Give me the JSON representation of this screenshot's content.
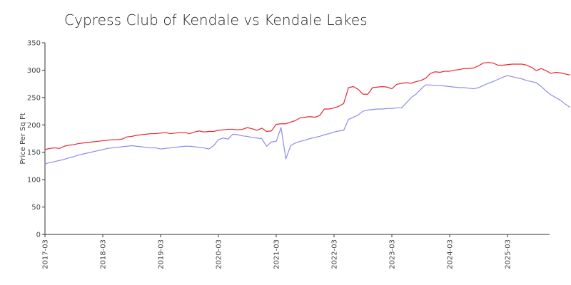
{
  "chart_data": {
    "type": "line",
    "title": "Cypress Club of Kendale vs Kendale Lakes",
    "xlabel": "",
    "ylabel": "Price Per Sq Ft",
    "ylim": [
      0,
      350
    ],
    "yticks": [
      0,
      50,
      100,
      150,
      200,
      250,
      300,
      350
    ],
    "xticks": [
      "2017-03",
      "2018-03",
      "2019-03",
      "2020-03",
      "2021-03",
      "2022-03",
      "2023-03",
      "2024-03",
      "2025-03"
    ],
    "x_start": "2017-03",
    "grid": false,
    "legend": "none",
    "series": [
      {
        "color": "#e8272d",
        "values": [
          155,
          157,
          158,
          157,
          161,
          163,
          164,
          166,
          167,
          168,
          169,
          170,
          171,
          172,
          173,
          173,
          174,
          178,
          179,
          181,
          182,
          183,
          184,
          184,
          185,
          186,
          184,
          185,
          186,
          186,
          184,
          187,
          189,
          187,
          188,
          188,
          190,
          191,
          192,
          192,
          191,
          192,
          195,
          193,
          190,
          194,
          188,
          189,
          201,
          202,
          202,
          205,
          208,
          213,
          214,
          215,
          214,
          217,
          229,
          229,
          231,
          234,
          239,
          268,
          270,
          265,
          256,
          256,
          268,
          269,
          270,
          269,
          266,
          274,
          276,
          277,
          276,
          279,
          281,
          285,
          294,
          297,
          296,
          298,
          298,
          300,
          301,
          303,
          303,
          304,
          308,
          313,
          314,
          313,
          309,
          309,
          310,
          311,
          311,
          311,
          309,
          305,
          299,
          303,
          299,
          294,
          296,
          295,
          293,
          291
        ]
      },
      {
        "color": "#8c8cf0",
        "values": [
          129,
          131,
          133,
          135,
          137,
          140,
          142,
          145,
          147,
          149,
          151,
          153,
          155,
          157,
          158,
          159,
          160,
          161,
          162,
          161,
          160,
          159,
          158,
          158,
          156,
          157,
          158,
          159,
          160,
          161,
          161,
          160,
          159,
          158,
          156,
          162,
          173,
          176,
          174,
          183,
          182,
          180,
          179,
          177,
          176,
          175,
          161,
          169,
          170,
          195,
          138,
          162,
          167,
          170,
          172,
          175,
          177,
          179,
          182,
          184,
          187,
          189,
          190,
          210,
          214,
          218,
          225,
          227,
          228,
          229,
          229,
          230,
          230,
          231,
          231,
          240,
          250,
          256,
          265,
          273,
          273,
          272,
          272,
          271,
          270,
          269,
          268,
          268,
          267,
          266,
          268,
          272,
          276,
          279,
          283,
          287,
          290,
          288,
          286,
          284,
          281,
          279,
          277,
          270,
          262,
          255,
          250,
          245,
          238,
          232
        ]
      }
    ]
  }
}
